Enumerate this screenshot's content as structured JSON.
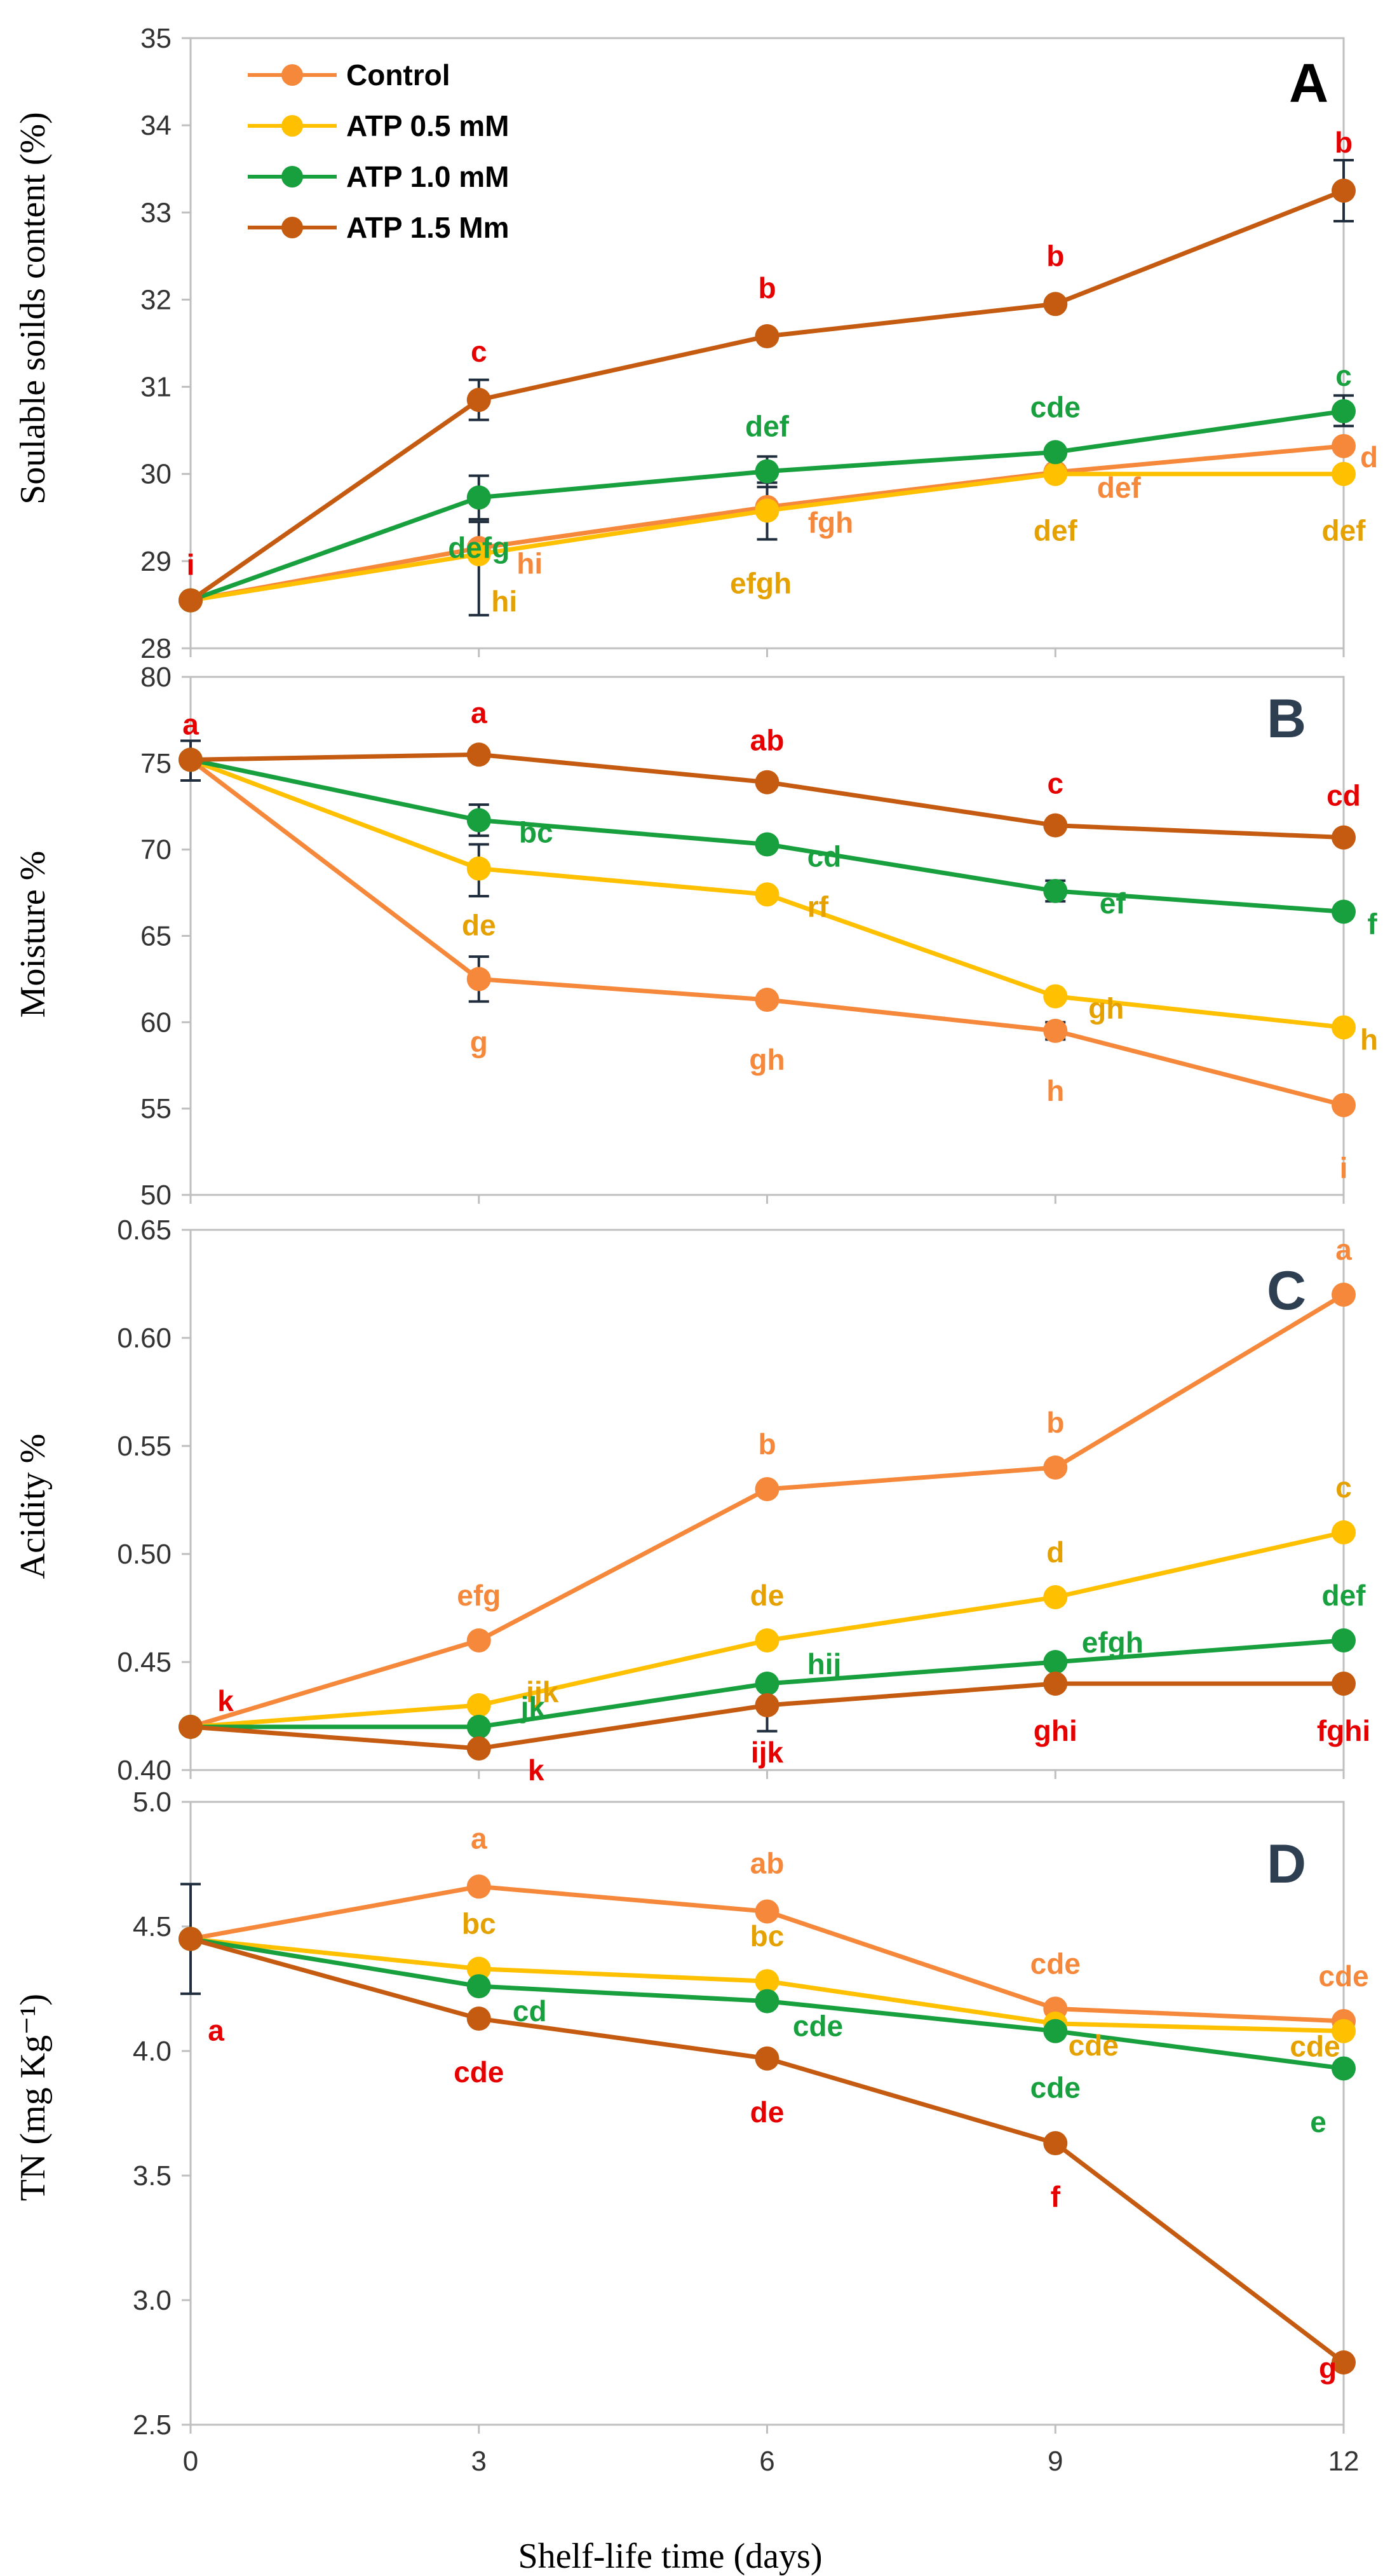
{
  "figure": {
    "xlabel": "Shelf-life time (days)",
    "x_ticks": [
      "0",
      "3",
      "6",
      "9",
      "12"
    ]
  },
  "legend": [
    {
      "name": "Control",
      "color": "#F5883A"
    },
    {
      "name": "ATP 0.5 mM",
      "color": "#FFC000"
    },
    {
      "name": "ATP 1.0 mM",
      "color": "#18A03E"
    },
    {
      "name": "ATP 1.5 Mm",
      "color": "#C55A11"
    }
  ],
  "chart_data": [
    {
      "panel": "A",
      "type": "line",
      "ylabel": "Soulable soilds content (%)",
      "ylim": [
        28,
        35
      ],
      "y_ticks": [
        "28",
        "29",
        "30",
        "31",
        "32",
        "33",
        "34",
        "35"
      ],
      "x": [
        0,
        3,
        6,
        9,
        12
      ],
      "series": [
        {
          "name": "Control",
          "color": "#F5883A",
          "values": [
            28.55,
            29.15,
            29.62,
            30.02,
            30.32
          ],
          "labels": [
            "",
            "hi",
            "fgh",
            "def",
            "d"
          ]
        },
        {
          "name": "ATP 0.5 mM",
          "color": "#FFC000",
          "values": [
            28.55,
            29.08,
            29.58,
            30.0,
            30.0
          ],
          "labels": [
            "",
            "hi",
            "efgh",
            "def",
            "def"
          ]
        },
        {
          "name": "ATP 1.0 mM",
          "color": "#18A03E",
          "values": [
            28.55,
            29.73,
            30.03,
            30.25,
            30.72
          ],
          "labels": [
            "",
            "defg",
            "def",
            "cde",
            "c"
          ]
        },
        {
          "name": "ATP 1.5 Mm",
          "color": "#C55A11",
          "values": [
            28.55,
            30.85,
            31.58,
            31.95,
            33.25
          ],
          "labels": [
            "",
            "c",
            "b",
            "b",
            "b"
          ]
        }
      ],
      "extra_labels": [
        {
          "text": "i",
          "color": "#E60000"
        }
      ]
    },
    {
      "panel": "B",
      "type": "line",
      "ylabel": "Moisture %",
      "ylim": [
        50,
        80
      ],
      "y_ticks": [
        "50",
        "55",
        "60",
        "65",
        "70",
        "75",
        "80"
      ],
      "x": [
        0,
        3,
        6,
        9,
        12
      ],
      "series": [
        {
          "name": "Control",
          "color": "#F5883A",
          "values": [
            75.2,
            62.5,
            61.3,
            59.5,
            55.2
          ],
          "labels": [
            "",
            "g",
            "gh",
            "h",
            "i"
          ]
        },
        {
          "name": "ATP 0.5 mM",
          "color": "#FFC000",
          "values": [
            75.2,
            68.9,
            67.4,
            61.5,
            59.7
          ],
          "labels": [
            "",
            "de",
            "rf",
            "gh",
            "h"
          ]
        },
        {
          "name": "ATP 1.0 mM",
          "color": "#18A03E",
          "values": [
            75.2,
            71.7,
            70.3,
            67.6,
            66.4
          ],
          "labels": [
            "",
            "bc",
            "cd",
            "ef",
            "f"
          ]
        },
        {
          "name": "ATP 1.5 Mm",
          "color": "#C55A11",
          "values": [
            75.2,
            75.5,
            73.9,
            71.4,
            70.7
          ],
          "labels": [
            "a",
            "a",
            "ab",
            "c",
            "cd"
          ]
        }
      ]
    },
    {
      "panel": "C",
      "type": "line",
      "ylabel": "Acidity %",
      "ylim": [
        0.4,
        0.65
      ],
      "y_ticks": [
        "0.40",
        "0.45",
        "0.50",
        "0.55",
        "0.60",
        "0.65"
      ],
      "x": [
        0,
        3,
        6,
        9,
        12
      ],
      "series": [
        {
          "name": "Control",
          "color": "#F5883A",
          "values": [
            0.42,
            0.46,
            0.53,
            0.54,
            0.62
          ],
          "labels": [
            "",
            "efg",
            "b",
            "b",
            "a"
          ]
        },
        {
          "name": "ATP 0.5 mM",
          "color": "#FFC000",
          "values": [
            0.42,
            0.43,
            0.46,
            0.48,
            0.51
          ],
          "labels": [
            "",
            "ijk",
            "de",
            "d",
            "c"
          ]
        },
        {
          "name": "ATP 1.0 mM",
          "color": "#18A03E",
          "values": [
            0.42,
            0.42,
            0.44,
            0.45,
            0.46
          ],
          "labels": [
            "",
            "jk",
            "hij",
            "efgh",
            "def"
          ]
        },
        {
          "name": "ATP 1.5 Mm",
          "color": "#C55A11",
          "values": [
            0.42,
            0.41,
            0.43,
            0.44,
            0.44
          ],
          "labels": [
            "",
            "k",
            "ijk",
            "ghi",
            "fghi"
          ]
        }
      ],
      "extra_labels": [
        {
          "text": "k",
          "color": "#E60000"
        }
      ]
    },
    {
      "panel": "D",
      "type": "line",
      "ylabel": "TN (mg Kg⁻¹)",
      "ylim": [
        2.5,
        5.0
      ],
      "y_ticks": [
        "2.5",
        "3.0",
        "3.5",
        "4.0",
        "4.5",
        "5.0"
      ],
      "x": [
        0,
        3,
        6,
        9,
        12
      ],
      "series": [
        {
          "name": "Control",
          "color": "#F5883A",
          "values": [
            4.45,
            4.66,
            4.56,
            4.17,
            4.12
          ],
          "labels": [
            "",
            "a",
            "ab",
            "cde",
            "cde"
          ]
        },
        {
          "name": "ATP 0.5 mM",
          "color": "#FFC000",
          "values": [
            4.45,
            4.33,
            4.28,
            4.11,
            4.08
          ],
          "labels": [
            "",
            "bc",
            "bc",
            "cde",
            "cde"
          ]
        },
        {
          "name": "ATP 1.0 mM",
          "color": "#18A03E",
          "values": [
            4.45,
            4.26,
            4.2,
            4.08,
            3.93
          ],
          "labels": [
            "",
            "cd",
            "cde",
            "cde",
            "e"
          ]
        },
        {
          "name": "ATP 1.5 Mm",
          "color": "#C55A11",
          "values": [
            4.45,
            4.13,
            3.97,
            3.63,
            2.75
          ],
          "labels": [
            "",
            "cde",
            "de",
            "f",
            "g"
          ]
        }
      ],
      "extra_labels": [
        {
          "text": "a",
          "color": "#E60000"
        }
      ]
    }
  ]
}
